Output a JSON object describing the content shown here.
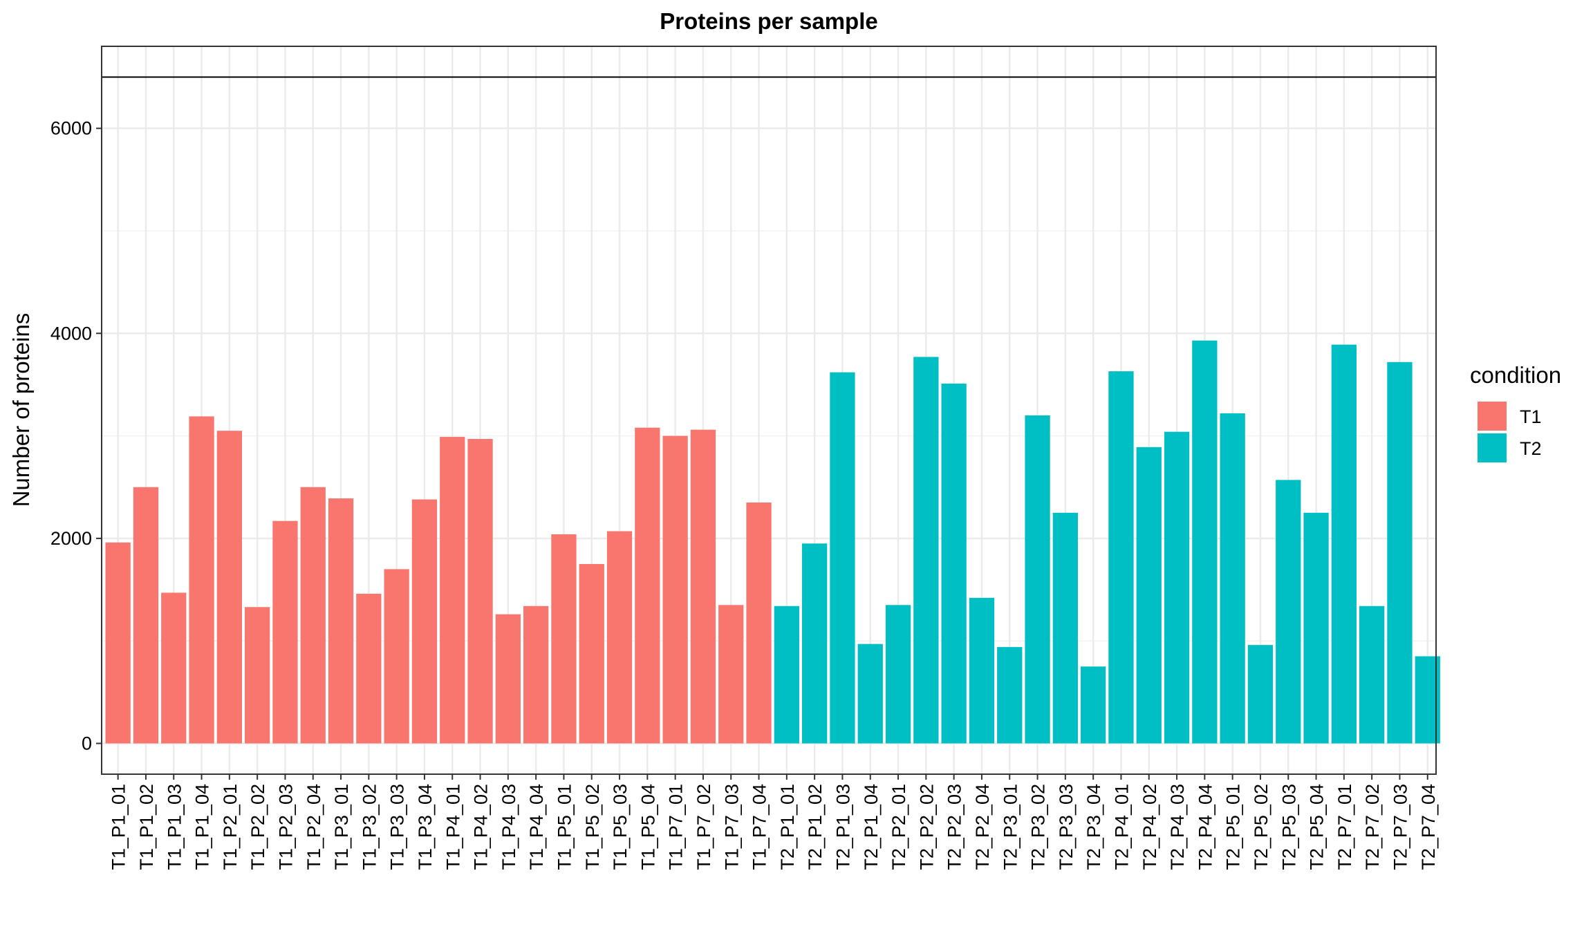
{
  "chart_data": {
    "type": "bar",
    "title": "Proteins per sample",
    "xlabel": "",
    "ylabel": "Number of proteins",
    "ylim": [
      -300,
      6800
    ],
    "yticks": [
      0,
      2000,
      4000,
      6000
    ],
    "grid": true,
    "hline": 6500,
    "legend": {
      "title": "condition",
      "position": "right",
      "entries": [
        {
          "label": "T1",
          "color": "#F8766D"
        },
        {
          "label": "T2",
          "color": "#00BFC4"
        }
      ]
    },
    "categories": [
      "T1_P1_01",
      "T1_P1_02",
      "T1_P1_03",
      "T1_P1_04",
      "T1_P2_01",
      "T1_P2_02",
      "T1_P2_03",
      "T1_P2_04",
      "T1_P3_01",
      "T1_P3_02",
      "T1_P3_03",
      "T1_P3_04",
      "T1_P4_01",
      "T1_P4_02",
      "T1_P4_03",
      "T1_P4_04",
      "T1_P5_01",
      "T1_P5_02",
      "T1_P5_03",
      "T1_P5_04",
      "T1_P7_01",
      "T1_P7_02",
      "T1_P7_03",
      "T1_P7_04",
      "T2_P1_01",
      "T2_P1_02",
      "T2_P1_03",
      "T2_P1_04",
      "T2_P2_01",
      "T2_P2_02",
      "T2_P2_03",
      "T2_P2_04",
      "T2_P3_01",
      "T2_P3_02",
      "T2_P3_03",
      "T2_P3_04",
      "T2_P4_01",
      "T2_P4_02",
      "T2_P4_03",
      "T2_P4_04",
      "T2_P5_01",
      "T2_P5_02",
      "T2_P5_03",
      "T2_P5_04",
      "T2_P7_01",
      "T2_P7_02",
      "T2_P7_03",
      "T2_P7_04"
    ],
    "values": [
      1960,
      2500,
      1470,
      3190,
      3050,
      1330,
      2170,
      2500,
      2390,
      1460,
      1700,
      2380,
      2990,
      2970,
      1260,
      1340,
      2040,
      1750,
      2070,
      3080,
      3000,
      3060,
      1350,
      2350,
      1340,
      1950,
      3620,
      970,
      1350,
      3770,
      3510,
      1420,
      940,
      3200,
      2250,
      750,
      3630,
      2890,
      3040,
      3930,
      3220,
      960,
      2570,
      2250,
      3890,
      1340,
      3720,
      850
    ],
    "conditions": [
      "T1",
      "T1",
      "T1",
      "T1",
      "T1",
      "T1",
      "T1",
      "T1",
      "T1",
      "T1",
      "T1",
      "T1",
      "T1",
      "T1",
      "T1",
      "T1",
      "T1",
      "T1",
      "T1",
      "T1",
      "T1",
      "T1",
      "T1",
      "T1",
      "T2",
      "T2",
      "T2",
      "T2",
      "T2",
      "T2",
      "T2",
      "T2",
      "T2",
      "T2",
      "T2",
      "T2",
      "T2",
      "T2",
      "T2",
      "T2",
      "T2",
      "T2",
      "T2",
      "T2",
      "T2",
      "T2",
      "T2",
      "T2"
    ]
  }
}
